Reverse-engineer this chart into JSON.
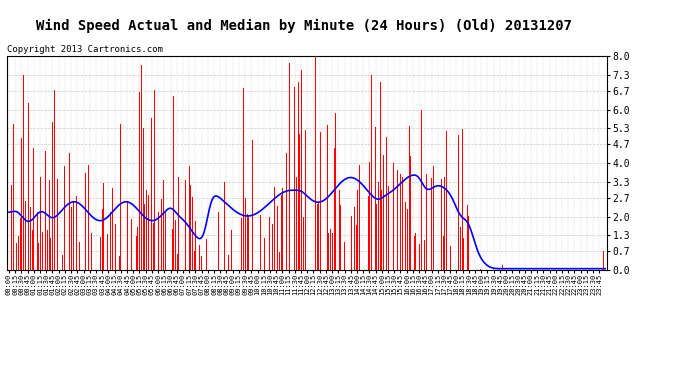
{
  "title": "Wind Speed Actual and Median by Minute (24 Hours) (Old) 20131207",
  "copyright": "Copyright 2013 Cartronics.com",
  "ylim": [
    0.0,
    8.0
  ],
  "yticks": [
    0.0,
    0.7,
    1.3,
    2.0,
    2.7,
    3.3,
    4.0,
    4.7,
    5.3,
    6.0,
    6.7,
    7.3,
    8.0
  ],
  "ytick_labels": [
    "0.0",
    "0.7",
    "1.3",
    "2.0",
    "2.7",
    "3.3",
    "4.0",
    "4.7",
    "5.3",
    "6.0",
    "6.7",
    "7.3",
    "8.0"
  ],
  "bar_color": "#ff0000",
  "median_color": "#0000ff",
  "background_color": "#ffffff",
  "grid_color": "#cccccc",
  "title_fontsize": 10,
  "legend_median_color": "#0000cc",
  "legend_wind_color": "#dd0000"
}
